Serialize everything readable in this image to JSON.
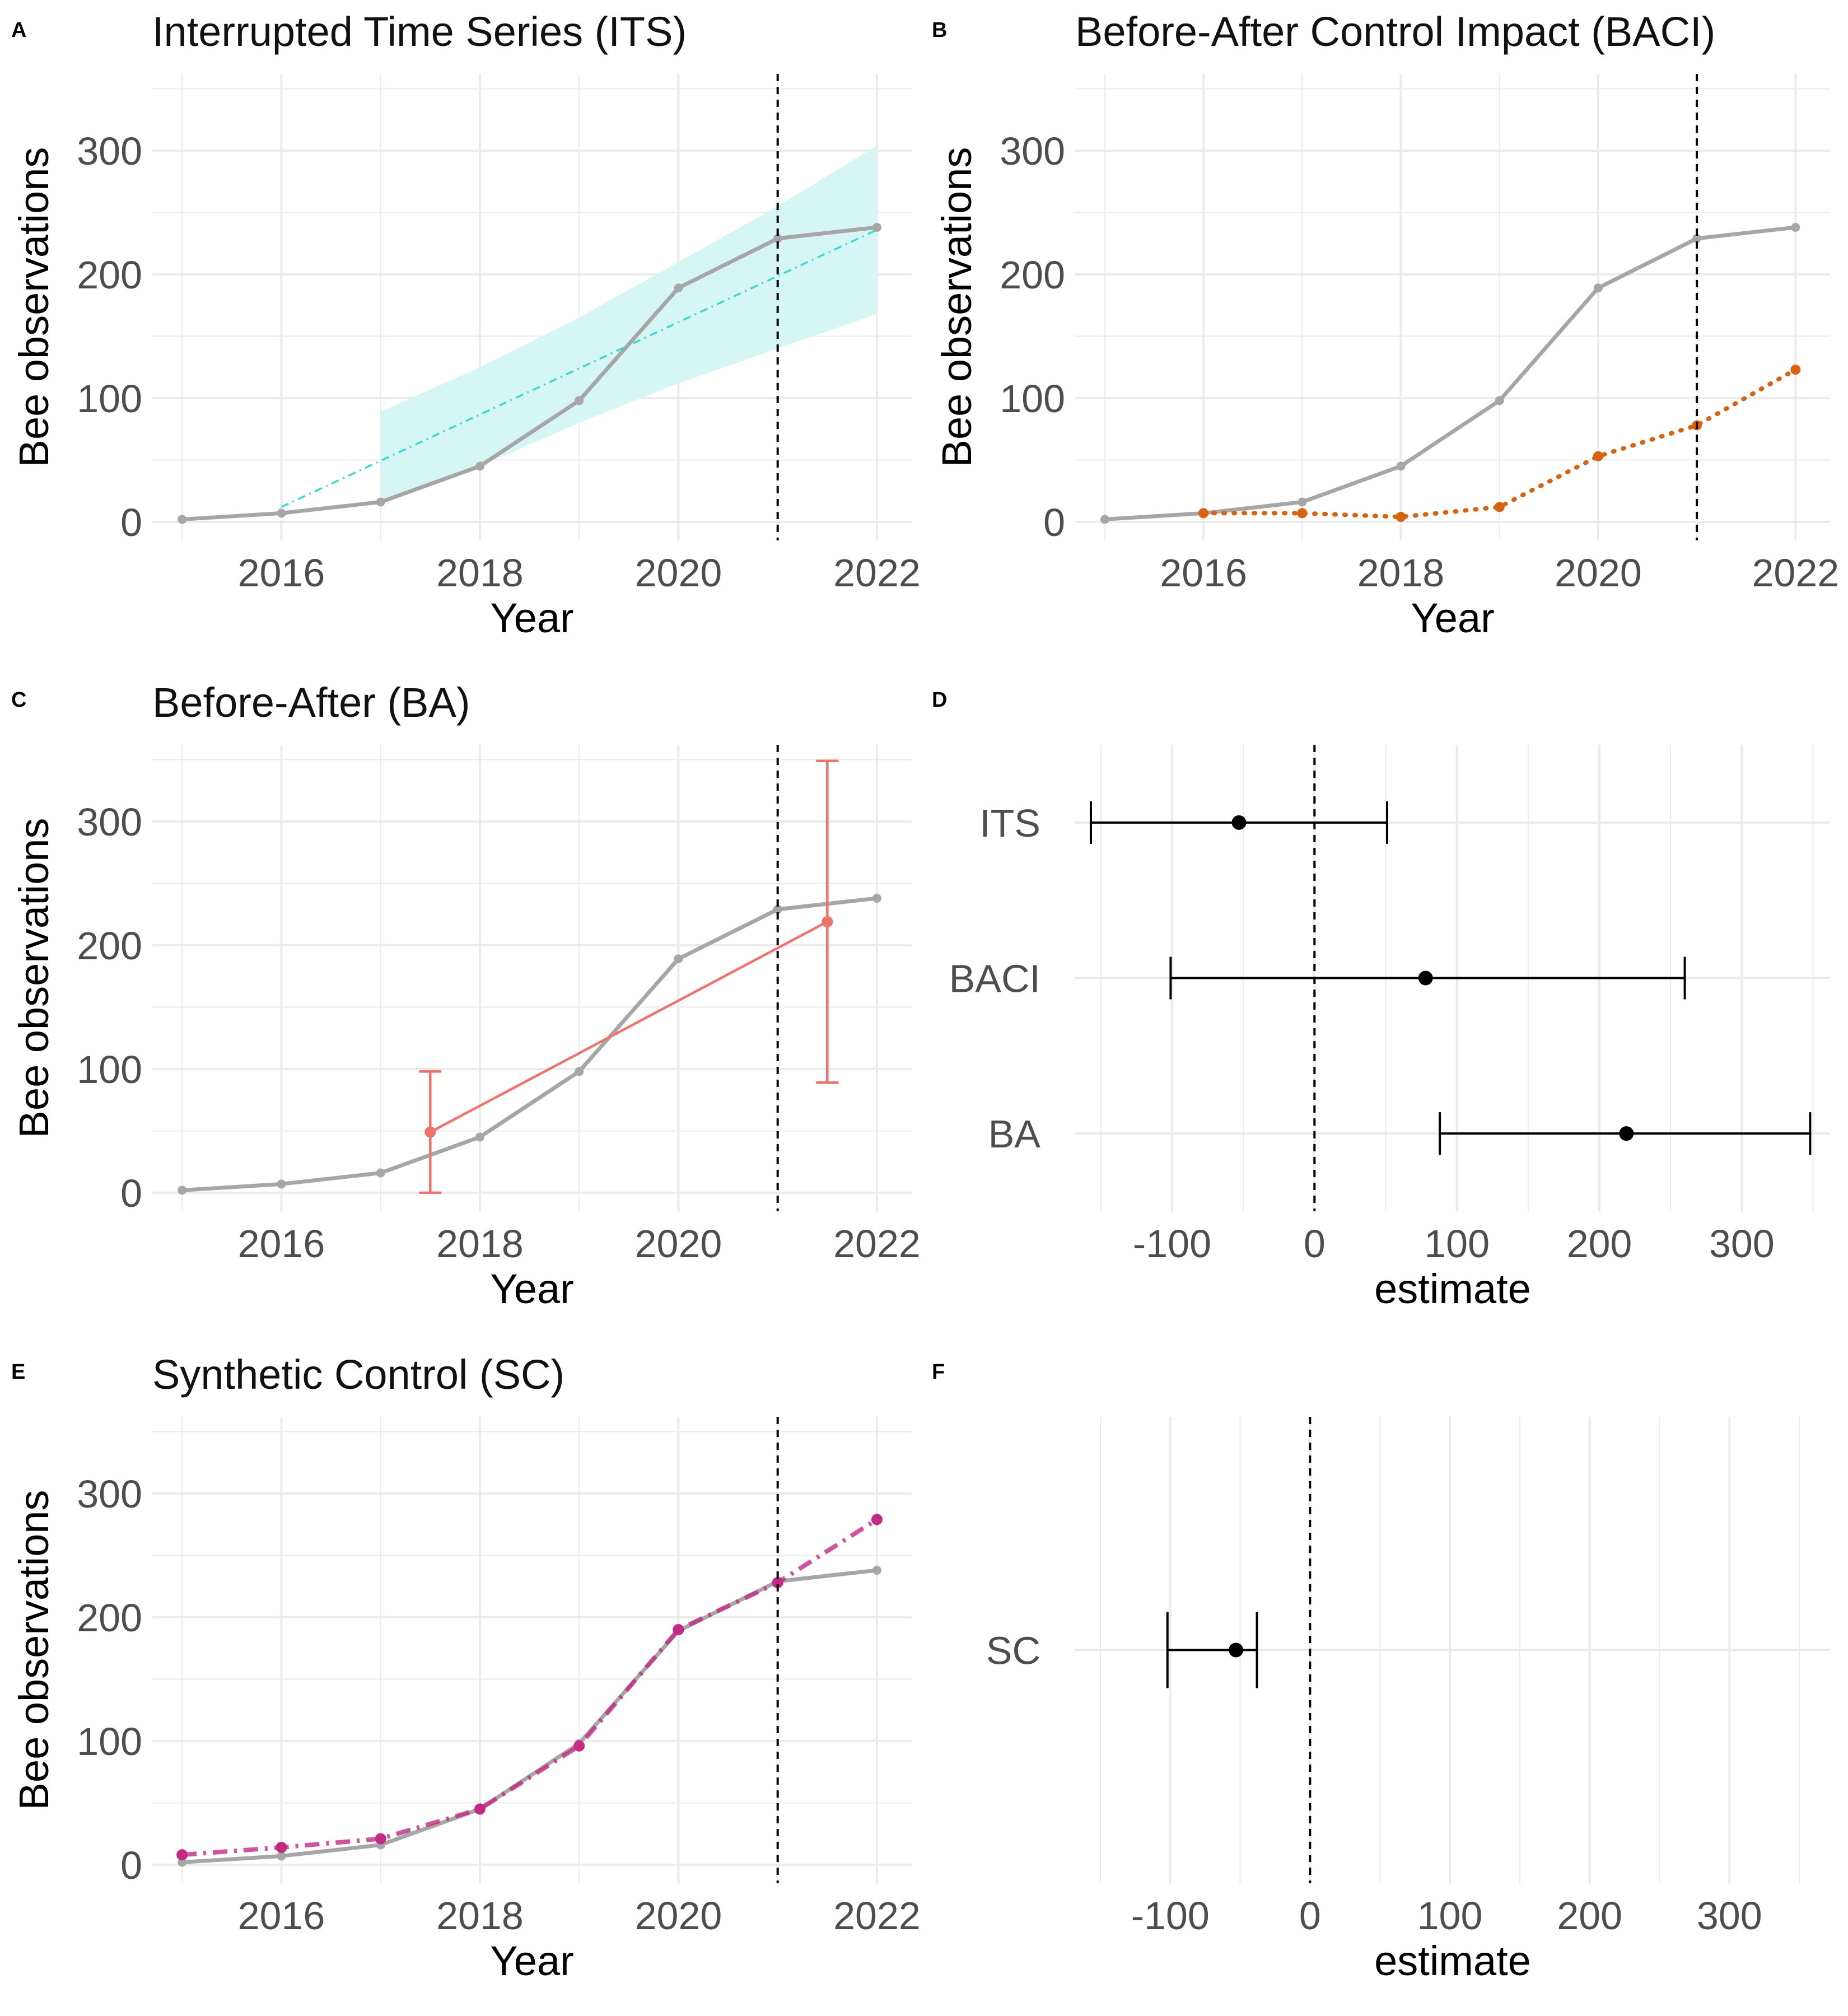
{
  "colors": {
    "observed": "#a6a6a6",
    "its": "#3dd9cf",
    "its_band": "#d5f6f3",
    "baci_control": "#d9620f",
    "ba": "#f0736b",
    "sc": "#c22a83",
    "estimate": "#000000",
    "grid": "#ebebeb"
  },
  "chart_data": [
    {
      "id": "A",
      "letter": "A",
      "type": "line",
      "title": "Interrupted Time Series (ITS)",
      "xlabel": "Year",
      "ylabel": "Bee observations",
      "xlim": [
        2014.7,
        2022.35
      ],
      "ylim": [
        -15,
        362
      ],
      "xticks": [
        2016,
        2018,
        2020,
        2022
      ],
      "yticks": [
        0,
        100,
        200,
        300
      ],
      "intervention_year": 2021,
      "series": [
        {
          "role": "observed",
          "x": [
            2015,
            2016,
            2017,
            2018,
            2019,
            2020,
            2021,
            2022
          ],
          "y": [
            2,
            7,
            16,
            45,
            98,
            189,
            229,
            238
          ]
        },
        {
          "role": "trend",
          "x": [
            2016,
            2022
          ],
          "y": [
            12,
            236
          ]
        }
      ],
      "band": {
        "x": [
          2017,
          2018,
          2019,
          2020,
          2021,
          2022
        ],
        "lower": [
          17,
          45,
          80,
          112,
          140,
          168
        ],
        "upper": [
          89,
          125,
          165,
          210,
          255,
          304
        ]
      }
    },
    {
      "id": "B",
      "letter": "B",
      "type": "line",
      "title": "Before-After Control Impact (BACI)",
      "xlabel": "Year",
      "ylabel": "Bee observations",
      "xlim": [
        2014.7,
        2022.35
      ],
      "ylim": [
        -15,
        362
      ],
      "xticks": [
        2016,
        2018,
        2020,
        2022
      ],
      "yticks": [
        0,
        100,
        200,
        300
      ],
      "intervention_year": 2021,
      "series": [
        {
          "role": "observed",
          "x": [
            2015,
            2016,
            2017,
            2018,
            2019,
            2020,
            2021,
            2022
          ],
          "y": [
            2,
            7,
            16,
            45,
            98,
            189,
            229,
            238
          ]
        },
        {
          "role": "control",
          "x": [
            2016,
            2017,
            2018,
            2019,
            2020,
            2021,
            2022
          ],
          "y": [
            7,
            7,
            4,
            12,
            53,
            78,
            123
          ]
        }
      ]
    },
    {
      "id": "C",
      "letter": "C",
      "type": "line",
      "title": "Before-After (BA)",
      "xlabel": "Year",
      "ylabel": "Bee observations",
      "xlim": [
        2014.7,
        2022.35
      ],
      "ylim": [
        -15,
        362
      ],
      "xticks": [
        2016,
        2018,
        2020,
        2022
      ],
      "yticks": [
        0,
        100,
        200,
        300
      ],
      "intervention_year": 2021,
      "series": [
        {
          "role": "observed",
          "x": [
            2015,
            2016,
            2017,
            2018,
            2019,
            2020,
            2021,
            2022
          ],
          "y": [
            2,
            7,
            16,
            45,
            98,
            189,
            229,
            238
          ]
        },
        {
          "role": "ba",
          "x": [
            2017.5,
            2021.5
          ],
          "y": [
            49,
            219
          ],
          "lower": [
            0,
            89
          ],
          "upper": [
            98,
            349
          ]
        }
      ]
    },
    {
      "id": "D",
      "letter": "D",
      "type": "scatter",
      "title": "",
      "xlabel": "estimate",
      "ylabel": "",
      "xlim": [
        -168,
        362
      ],
      "xticks": [
        -100,
        0,
        100,
        200,
        300
      ],
      "tick_labels": [
        "-100",
        "0",
        "100",
        "200",
        "300"
      ],
      "reference_x": 0,
      "categories": [
        "ITS",
        "BACI",
        "BA"
      ],
      "estimates": [
        -53,
        78,
        219
      ],
      "lower": [
        -157,
        -101,
        88
      ],
      "upper": [
        51,
        260,
        348
      ]
    },
    {
      "id": "E",
      "letter": "E",
      "type": "line",
      "title": "Synthetic Control (SC)",
      "xlabel": "Year",
      "ylabel": "Bee observations",
      "xlim": [
        2014.7,
        2022.35
      ],
      "ylim": [
        -15,
        362
      ],
      "xticks": [
        2016,
        2018,
        2020,
        2022
      ],
      "yticks": [
        0,
        100,
        200,
        300
      ],
      "intervention_year": 2021,
      "series": [
        {
          "role": "observed",
          "x": [
            2015,
            2016,
            2017,
            2018,
            2019,
            2020,
            2021,
            2022
          ],
          "y": [
            2,
            7,
            16,
            45,
            98,
            189,
            229,
            238
          ]
        },
        {
          "role": "synthetic",
          "x": [
            2015,
            2016,
            2017,
            2018,
            2019,
            2020,
            2021,
            2022
          ],
          "y": [
            8,
            14,
            21,
            45,
            96,
            190,
            228,
            279
          ]
        }
      ]
    },
    {
      "id": "F",
      "letter": "F",
      "type": "scatter",
      "title": "",
      "xlabel": "estimate",
      "ylabel": "",
      "xlim": [
        -168,
        372
      ],
      "xticks": [
        -100,
        0,
        100,
        200,
        300
      ],
      "tick_labels": [
        "-100",
        "0",
        "100",
        "200",
        "300"
      ],
      "reference_x": 0,
      "categories": [
        "SC"
      ],
      "estimates": [
        -53
      ],
      "lower": [
        -102
      ],
      "upper": [
        -38
      ]
    }
  ]
}
